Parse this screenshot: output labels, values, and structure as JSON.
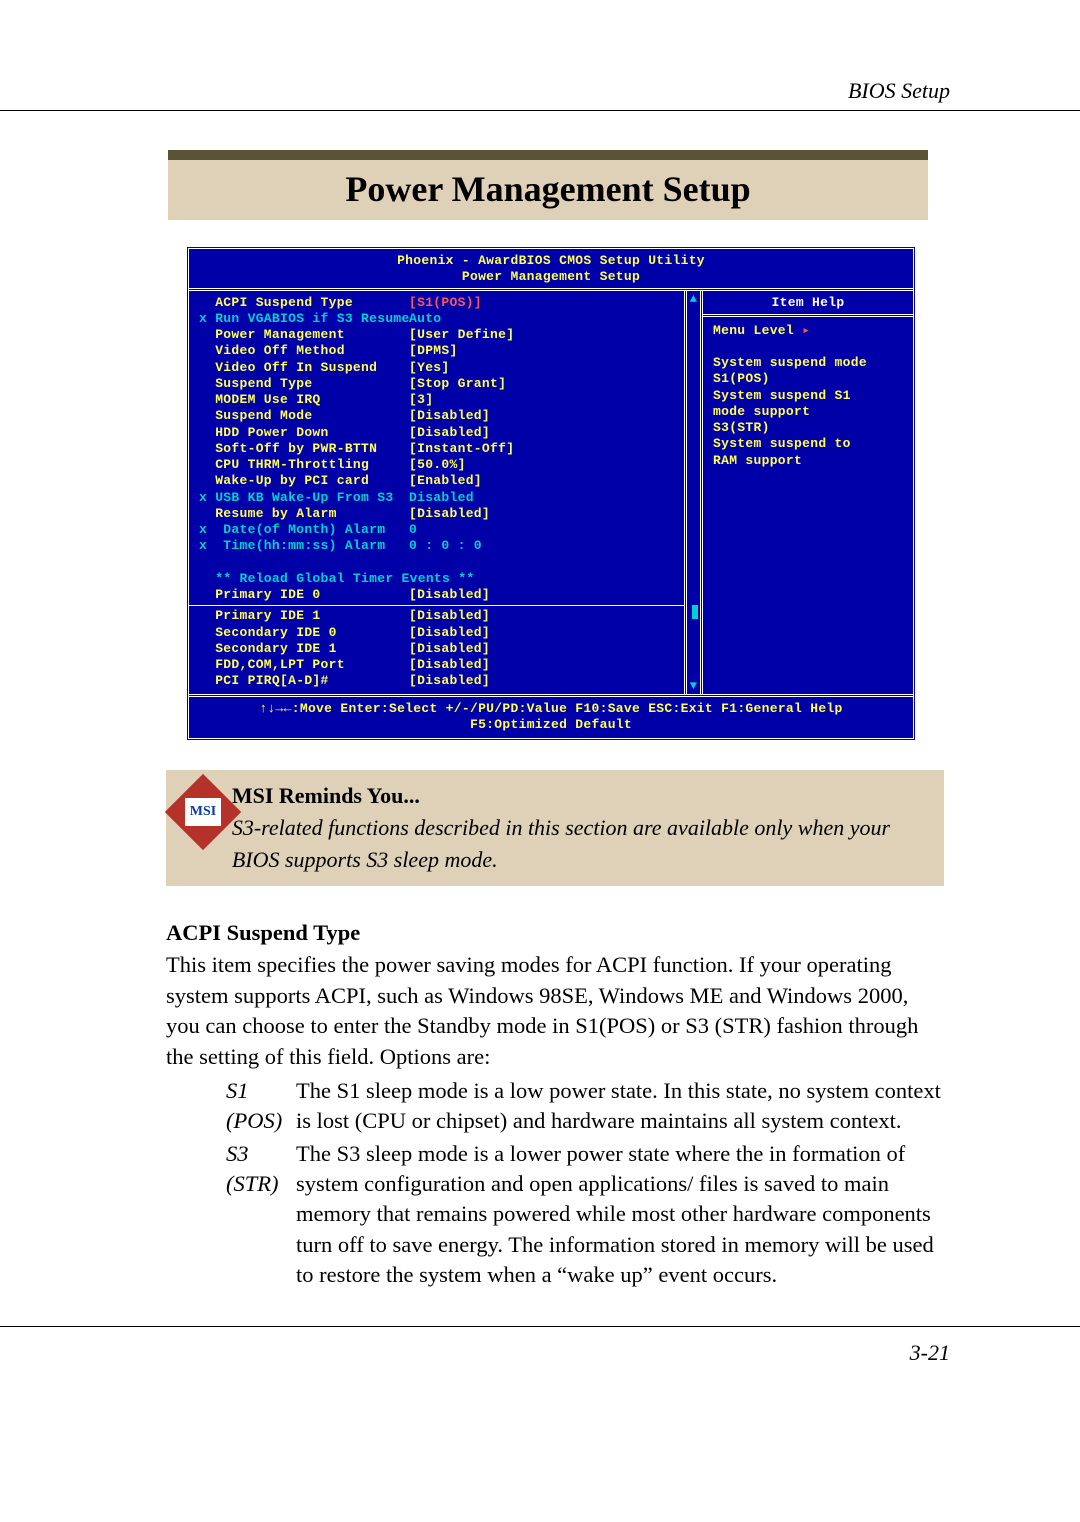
{
  "page": {
    "header": "BIOS Setup",
    "section_title": "Power Management Setup",
    "page_num": "3-21"
  },
  "bios": {
    "title_line1": "Phoenix - AwardBIOS CMOS Setup Utility",
    "title_line2": "Power Management Setup",
    "keys_line1": "↑↓→←:Move  Enter:Select  +/-/PU/PD:Value  F10:Save  ESC:Exit  F1:General Help",
    "keys_line2": "F5:Optimized  Default",
    "settings_top": [
      {
        "prefix": "",
        "label": "ACPI Suspend Type",
        "value": "[S1(POS)]",
        "value_color": "red"
      },
      {
        "prefix": "x ",
        "label": "Run VGABIOS if S3 Resume",
        "value": "Auto",
        "value_color": "cyan",
        "row_color": "cyan"
      },
      {
        "prefix": "",
        "label": "Power Management",
        "value": "[User Define]",
        "value_color": "yellow"
      },
      {
        "prefix": "",
        "label": "Video Off Method",
        "value": "[DPMS]",
        "value_color": "yellow"
      },
      {
        "prefix": "",
        "label": "Video Off In Suspend",
        "value": "[Yes]",
        "value_color": "yellow"
      },
      {
        "prefix": "",
        "label": "Suspend Type",
        "value": "[Stop Grant]",
        "value_color": "yellow"
      },
      {
        "prefix": "",
        "label": "MODEM Use IRQ",
        "value": "[3]",
        "value_color": "yellow"
      },
      {
        "prefix": "",
        "label": "Suspend Mode",
        "value": "[Disabled]",
        "value_color": "yellow"
      },
      {
        "prefix": "",
        "label": "HDD Power Down",
        "value": "[Disabled]",
        "value_color": "yellow"
      },
      {
        "prefix": "",
        "label": "Soft-Off by PWR-BTTN",
        "value": "[Instant-Off]",
        "value_color": "yellow"
      },
      {
        "prefix": "",
        "label": "CPU THRM-Throttling",
        "value": "[50.0%]",
        "value_color": "yellow"
      },
      {
        "prefix": "",
        "label": "Wake-Up by PCI card",
        "value": "[Enabled]",
        "value_color": "yellow"
      },
      {
        "prefix": "x ",
        "label": "USB KB Wake-Up From S3",
        "value": "Disabled",
        "value_color": "cyan",
        "row_color": "cyan"
      },
      {
        "prefix": "",
        "label": "Resume by Alarm",
        "value": "[Disabled]",
        "value_color": "yellow"
      },
      {
        "prefix": "x ",
        "label": " Date(of Month) Alarm",
        "value": "0",
        "value_color": "cyan",
        "row_color": "cyan"
      },
      {
        "prefix": "x ",
        "label": " Time(hh:mm:ss) Alarm",
        "value": "0 : 0 : 0",
        "value_color": "cyan",
        "row_color": "cyan"
      }
    ],
    "reload_header": "** Reload Global Timer Events **",
    "settings_mid": [
      {
        "prefix": "",
        "label": "Primary IDE 0",
        "value": "[Disabled]",
        "value_color": "yellow"
      }
    ],
    "settings_bottom": [
      {
        "prefix": "",
        "label": "Primary IDE 1",
        "value": "[Disabled]",
        "value_color": "yellow"
      },
      {
        "prefix": "",
        "label": "Secondary IDE 0",
        "value": "[Disabled]",
        "value_color": "yellow"
      },
      {
        "prefix": "",
        "label": "Secondary IDE 1",
        "value": "[Disabled]",
        "value_color": "yellow"
      },
      {
        "prefix": "",
        "label": "FDD,COM,LPT Port",
        "value": "[Disabled]",
        "value_color": "yellow"
      },
      {
        "prefix": "",
        "label": "PCI PIRQ[A-D]#",
        "value": "[Disabled]",
        "value_color": "yellow"
      }
    ],
    "help": {
      "title": "Item Help",
      "menu_level": "Menu Level",
      "lines": [
        "System suspend mode",
        "S1(POS)",
        "System suspend S1",
        "mode support",
        "S3(STR)",
        "System suspend to",
        "RAM support"
      ]
    }
  },
  "reminder": {
    "logo_text": "MSI",
    "heading": "MSI Reminds You...",
    "body": "S3-related functions described in this section are available only when your BIOS supports S3 sleep mode."
  },
  "content": {
    "h4": "ACPI Suspend Type",
    "intro": "This item specifies the power saving modes for ACPI function. If your operating system supports ACPI, such as Windows 98SE, Windows ME and Windows 2000, you can choose to enter the Standby mode in S1(POS) or S3 (STR) fashion through the setting of this field. Options are:",
    "options": [
      {
        "label": "S1 (POS)",
        "text": "The S1 sleep mode is a low power state.  In this state, no system context is lost (CPU or chipset) and hardware maintains all system context."
      },
      {
        "label": "S3 (STR)",
        "text": "The S3 sleep mode is a lower power state where the in formation of system configuration and open applications/ files is saved to main memory that remains powered while most other hardware components turn off to save energy. The information stored in memory will be used to restore the system when a “wake up” event occurs."
      }
    ]
  },
  "colors": {
    "bios_bg": "#0000a8",
    "bios_cyan": "#00d0d0",
    "bios_yellow": "#ffff55",
    "bios_red": "#ff5555",
    "reminder_bg": "#ded1b8",
    "logo_red": "#b5322a"
  }
}
